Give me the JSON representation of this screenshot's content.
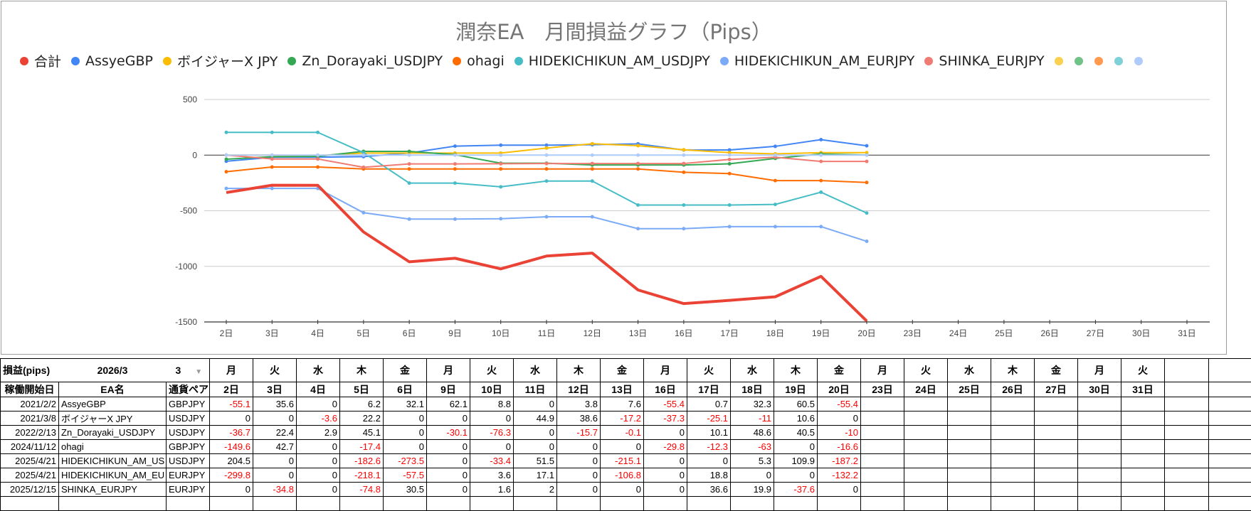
{
  "chart_data": {
    "type": "line",
    "title": "潤奈EA　月間損益グラフ（Pips）",
    "xlabel": "",
    "ylabel": "",
    "ylim": [
      -1500,
      500
    ],
    "yticks": [
      "500",
      "0",
      "-500",
      "-1000",
      "-1500"
    ],
    "ytick_values": [
      500,
      0,
      -500,
      -1000,
      -1500
    ],
    "grid": true,
    "legend_position": "top",
    "categories": [
      "2日",
      "3日",
      "4日",
      "5日",
      "6日",
      "9日",
      "10日",
      "11日",
      "12日",
      "13日",
      "16日",
      "17日",
      "18日",
      "19日",
      "20日",
      "23日",
      "24日",
      "25日",
      "26日",
      "27日",
      "30日",
      "31日"
    ],
    "series": [
      {
        "name": "合計",
        "color": "#ea4335",
        "emphasis": true,
        "values": [
          -336.7,
          -270.8,
          -271.5,
          -690.9,
          -959.3,
          -927.3,
          -1023,
          -907.5,
          -880.8,
          -1212.4,
          -1334.9,
          -1306.1,
          -1274,
          -1090.1,
          -1491.5
        ]
      },
      {
        "name": "AssyeGBP",
        "color": "#4285f4",
        "values": [
          -55.1,
          -19.5,
          -19.5,
          -13.3,
          18.8,
          80.9,
          89.7,
          89.7,
          93.5,
          101.1,
          45.7,
          46.4,
          78.7,
          139.2,
          83.8
        ]
      },
      {
        "name": "ボイジャーX JPY",
        "color": "#fbbc04",
        "values": [
          0,
          0,
          -3.6,
          18.6,
          18.6,
          18.6,
          18.6,
          63.5,
          102.1,
          84.9,
          47.6,
          22.5,
          11.5,
          22.1,
          22.1
        ]
      },
      {
        "name": "Zn_Dorayaki_USDJPY",
        "color": "#34a853",
        "values": [
          -36.7,
          -14.3,
          -11.4,
          33.7,
          33.7,
          3.6,
          -72.7,
          -72.7,
          -88.4,
          -88.5,
          -88.5,
          -78.4,
          -29.8,
          10.7,
          0.7
        ]
      },
      {
        "name": "ohagi",
        "color": "#ff6d01",
        "values": [
          -149.6,
          -106.9,
          -106.9,
          -124.3,
          -124.3,
          -124.3,
          -124.3,
          -124.3,
          -124.3,
          -124.3,
          -154.1,
          -166.4,
          -229.4,
          -229.4,
          -246
        ]
      },
      {
        "name": "HIDEKICHIKUN_AM_USDJPY",
        "color": "#46bdc6",
        "values": [
          204.5,
          204.5,
          204.5,
          21.9,
          -251.6,
          -251.6,
          -285,
          -233.5,
          -233.5,
          -448.6,
          -448.6,
          -448.6,
          -443.3,
          -333.4,
          -520.6
        ]
      },
      {
        "name": "HIDEKICHIKUN_AM_EURJPY",
        "color": "#7baaf7",
        "values": [
          -299.8,
          -299.8,
          -299.8,
          -517.9,
          -575.4,
          -575.4,
          -571.8,
          -554.7,
          -554.7,
          -661.5,
          -661.5,
          -642.7,
          -642.7,
          -642.7,
          -774.9
        ]
      },
      {
        "name": "SHINKA_EURJPY",
        "color": "#f07b72",
        "values": [
          0,
          -34.8,
          -34.8,
          -109.6,
          -79.1,
          -79.1,
          -77.5,
          -75.5,
          -75.5,
          -75.5,
          -75.5,
          -38.9,
          -19,
          -56.6,
          -56.6
        ]
      },
      {
        "name": "",
        "color": "#aecbfa",
        "values": [
          0,
          0,
          0,
          0,
          0,
          0,
          0,
          0,
          0,
          0,
          0,
          0,
          0,
          0,
          0
        ]
      }
    ],
    "extra_legend_dots": [
      "#fcd04f",
      "#71c287",
      "#ff994d",
      "#7ed1d7",
      "#afcbfa"
    ]
  },
  "table": {
    "title": "損益(pips)",
    "month": "2026/3",
    "month_select": "3",
    "col_headers": [
      "稼働開始日",
      "EA名",
      "通貨ペア"
    ],
    "weekdays": [
      "月",
      "火",
      "水",
      "木",
      "金",
      "月",
      "火",
      "水",
      "木",
      "金",
      "月",
      "火",
      "水",
      "木",
      "金",
      "月",
      "火",
      "水",
      "木",
      "金",
      "月",
      "火",
      "",
      ""
    ],
    "days": [
      "2日",
      "3日",
      "4日",
      "5日",
      "6日",
      "9日",
      "10日",
      "11日",
      "12日",
      "13日",
      "16日",
      "17日",
      "18日",
      "19日",
      "20日",
      "23日",
      "24日",
      "25日",
      "26日",
      "27日",
      "30日",
      "31日",
      "",
      ""
    ],
    "rows": [
      {
        "start": "2021/2/2",
        "name": "AssyeGBP",
        "pair": "GBPJPY",
        "values": [
          "-55.1",
          "35.6",
          "0",
          "6.2",
          "32.1",
          "62.1",
          "8.8",
          "0",
          "3.8",
          "7.6",
          "-55.4",
          "0.7",
          "32.3",
          "60.5",
          "-55.4",
          "",
          "",
          "",
          "",
          "",
          "",
          "",
          "",
          ""
        ]
      },
      {
        "start": "2021/3/8",
        "name": "ボイジャーX JPY",
        "pair": "USDJPY",
        "values": [
          "0",
          "0",
          "-3.6",
          "22.2",
          "0",
          "0",
          "0",
          "44.9",
          "38.6",
          "-17.2",
          "-37.3",
          "-25.1",
          "-11",
          "10.6",
          "0",
          "",
          "",
          "",
          "",
          "",
          "",
          "",
          "",
          ""
        ]
      },
      {
        "start": "2022/2/13",
        "name": "Zn_Dorayaki_USDJPY",
        "pair": "USDJPY",
        "values": [
          "-36.7",
          "22.4",
          "2.9",
          "45.1",
          "0",
          "-30.1",
          "-76.3",
          "0",
          "-15.7",
          "-0.1",
          "0",
          "10.1",
          "48.6",
          "40.5",
          "-10",
          "",
          "",
          "",
          "",
          "",
          "",
          "",
          "",
          ""
        ]
      },
      {
        "start": "2024/11/12",
        "name": "ohagi",
        "pair": "GBPJPY",
        "values": [
          "-149.6",
          "42.7",
          "0",
          "-17.4",
          "0",
          "0",
          "0",
          "0",
          "0",
          "0",
          "-29.8",
          "-12.3",
          "-63",
          "0",
          "-16.6",
          "",
          "",
          "",
          "",
          "",
          "",
          "",
          "",
          ""
        ]
      },
      {
        "start": "2025/4/21",
        "name": "HIDEKICHIKUN_AM_US",
        "pair": "USDJPY",
        "values": [
          "204.5",
          "0",
          "0",
          "-182.6",
          "-273.5",
          "0",
          "-33.4",
          "51.5",
          "0",
          "-215.1",
          "0",
          "0",
          "5.3",
          "109.9",
          "-187.2",
          "",
          "",
          "",
          "",
          "",
          "",
          "",
          "",
          ""
        ]
      },
      {
        "start": "2025/4/21",
        "name": "HIDEKICHIKUN_AM_EU",
        "pair": "EURJPY",
        "values": [
          "-299.8",
          "0",
          "0",
          "-218.1",
          "-57.5",
          "0",
          "3.6",
          "17.1",
          "0",
          "-106.8",
          "0",
          "18.8",
          "0",
          "0",
          "-132.2",
          "",
          "",
          "",
          "",
          "",
          "",
          "",
          "",
          ""
        ]
      },
      {
        "start": "2025/12/15",
        "name": "SHINKA_EURJPY",
        "pair": "EURJPY",
        "values": [
          "0",
          "-34.8",
          "0",
          "-74.8",
          "30.5",
          "0",
          "1.6",
          "2",
          "0",
          "0",
          "0",
          "36.6",
          "19.9",
          "-37.6",
          "0",
          "",
          "",
          "",
          "",
          "",
          "",
          "",
          "",
          ""
        ]
      },
      {
        "start": "",
        "name": "",
        "pair": "",
        "values": [
          "",
          "",
          "",
          "",
          "",
          "",
          "",
          "",
          "",
          "",
          "",
          "",
          "",
          "",
          "",
          "",
          "",
          "",
          "",
          "",
          "",
          "",
          "",
          ""
        ]
      }
    ]
  }
}
